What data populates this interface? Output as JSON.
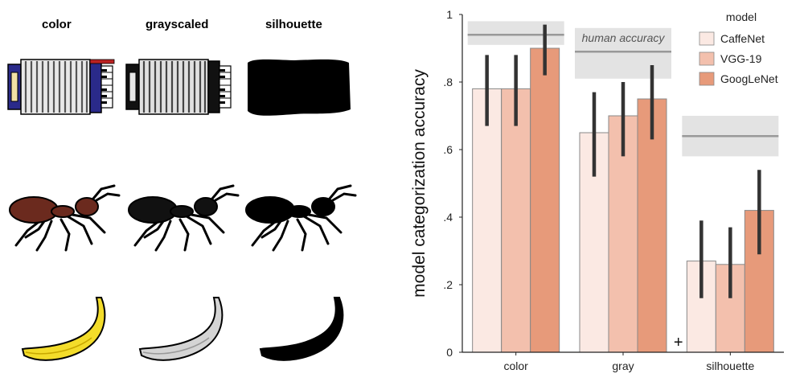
{
  "stimuli": {
    "headers": [
      "color",
      "grayscaled",
      "silhouette"
    ],
    "rows": [
      {
        "object": "accordion",
        "icon": "accordion-icon"
      },
      {
        "object": "ant",
        "icon": "ant-icon"
      },
      {
        "object": "banana",
        "icon": "banana-icon"
      }
    ]
  },
  "chart_data": {
    "type": "bar",
    "categories": [
      "color",
      "gray",
      "silhouette"
    ],
    "series": [
      {
        "name": "CaffeNet",
        "values": [
          0.78,
          0.65,
          0.27
        ],
        "ci_low": [
          0.67,
          0.52,
          0.16
        ],
        "ci_high": [
          0.88,
          0.77,
          0.39
        ],
        "color": "#fbe9e3"
      },
      {
        "name": "VGG-19",
        "values": [
          0.78,
          0.7,
          0.26
        ],
        "ci_low": [
          0.67,
          0.58,
          0.16
        ],
        "ci_high": [
          0.88,
          0.8,
          0.37
        ],
        "color": "#f3c0ad"
      },
      {
        "name": "GoogLeNet",
        "values": [
          0.9,
          0.75,
          0.42
        ],
        "ci_low": [
          0.82,
          0.63,
          0.29
        ],
        "ci_high": [
          0.97,
          0.85,
          0.54
        ],
        "color": "#e79a7a"
      }
    ],
    "human_accuracy": [
      {
        "value": 0.94,
        "ci_low": 0.91,
        "ci_high": 0.98
      },
      {
        "value": 0.89,
        "ci_low": 0.81,
        "ci_high": 0.96
      },
      {
        "value": 0.64,
        "ci_low": 0.58,
        "ci_high": 0.7
      }
    ],
    "human_label": "human accuracy",
    "ylabel": "model categorization accuracy",
    "xlabel": "",
    "ylim": [
      0,
      1
    ],
    "yticks": [
      0,
      0.2,
      0.4,
      0.6,
      0.8,
      1
    ],
    "ytick_labels": [
      "0",
      ".2",
      ".4",
      ".6",
      ".8",
      "1"
    ],
    "legend_title": "model",
    "legend_position": "top-right",
    "annotation": "+",
    "colors": {
      "bar_edge": "#888888",
      "error_bar": "#333333",
      "human_line": "#999999",
      "human_band": "#e3e3e3"
    }
  }
}
